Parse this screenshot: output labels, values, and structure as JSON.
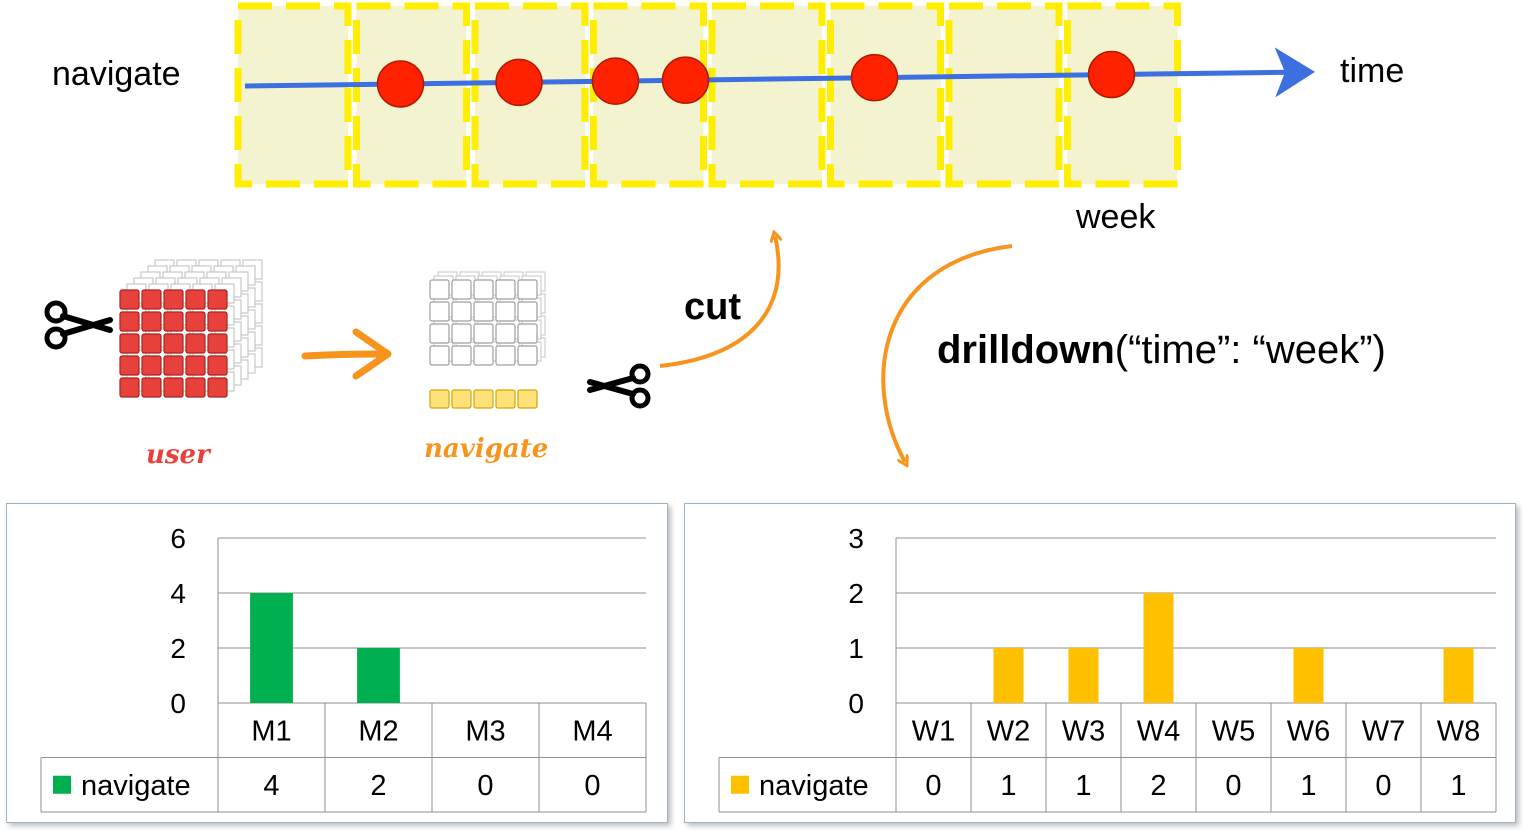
{
  "timeline": {
    "left_label": "navigate",
    "axis_label": "time",
    "bucket_label": "week",
    "bucket_count": 8,
    "event_weeks": [
      2,
      3,
      4,
      4,
      6,
      8
    ]
  },
  "operations": {
    "cut_label": "cut",
    "drilldown_keyword": "drilldown",
    "drilldown_args": "(“time”: “week”)"
  },
  "cubes": {
    "source_caption": "user",
    "target_caption": "navigate"
  },
  "colors": {
    "event_dot": "#ff2200",
    "timeline": "#3c6fe0",
    "bucket_fill": "#f3f3cf",
    "bucket_border": "#ffee00",
    "arrow_orange": "#f7941d",
    "monthly_bar": "#00b050",
    "weekly_bar": "#ffc000",
    "cube_red": "#e8413c",
    "cube_yellow": "#fde27a"
  },
  "chart_data": [
    {
      "type": "bar",
      "categories": [
        "M1",
        "M2",
        "M3",
        "M4"
      ],
      "series": [
        {
          "name": "navigate",
          "values": [
            4,
            2,
            0,
            0
          ]
        }
      ],
      "yticks": [
        0,
        2,
        4,
        6
      ],
      "ylim": [
        0,
        6
      ],
      "grid": true,
      "legend": "data-table",
      "data_table": true
    },
    {
      "type": "bar",
      "categories": [
        "W1",
        "W2",
        "W3",
        "W4",
        "W5",
        "W6",
        "W7",
        "W8"
      ],
      "series": [
        {
          "name": "navigate",
          "values": [
            0,
            1,
            1,
            2,
            0,
            1,
            0,
            1
          ]
        }
      ],
      "yticks": [
        0,
        1,
        2,
        3
      ],
      "ylim": [
        0,
        3
      ],
      "grid": true,
      "legend": "data-table",
      "data_table": true
    }
  ]
}
